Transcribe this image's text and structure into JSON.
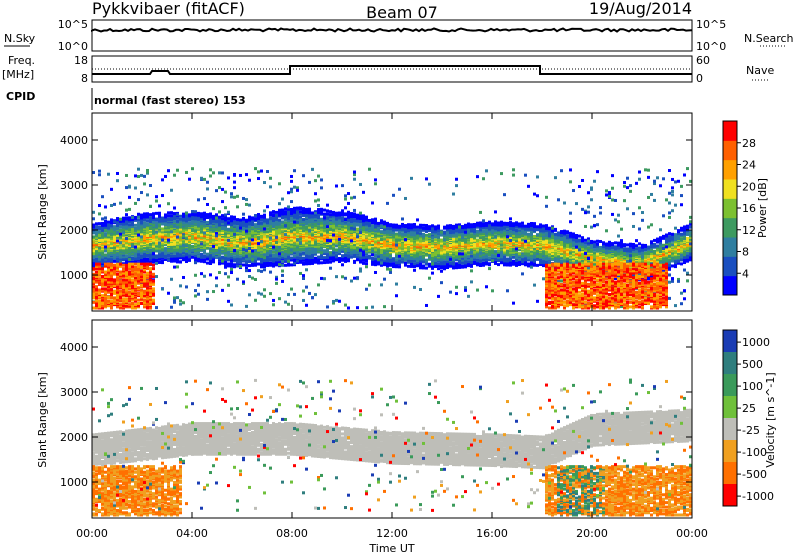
{
  "header": {
    "radar": "Pykkvibaer (fitACF)",
    "beam": "Beam 07",
    "date": "19/Aug/2014"
  },
  "sky_panel": {
    "left_label": "N.Sky",
    "left_ticks": [
      "10^5",
      "10^0"
    ],
    "right_ticks": [
      "10^5",
      "10^0"
    ],
    "right_label": "N.Search"
  },
  "freq_panel": {
    "left_label_1": "Freq.",
    "left_label_2": "[MHz]",
    "left_ticks": [
      "18",
      "8"
    ],
    "right_ticks": [
      "60",
      "0"
    ],
    "right_label": "Nave"
  },
  "cpid": {
    "label": "CPID",
    "text": "normal (fast stereo) 153"
  },
  "colors": {
    "scale_blue": "#0000ff",
    "scale_red": "#ff0000",
    "ground_scatter": "#bebeb8"
  },
  "chart_data": [
    {
      "type": "heatmap",
      "name": "power",
      "ylabel": "Slant Range [km]",
      "yticks": [
        1000,
        2000,
        3000,
        4000
      ],
      "ylim": [
        200,
        4600
      ],
      "xlim": [
        "00:00",
        "24:00"
      ],
      "colorbar_label": "Power [dB]",
      "colorbar_ticks": [
        "4",
        "8",
        "12",
        "16",
        "20",
        "24",
        "28"
      ],
      "colorbar_range": [
        0,
        32
      ],
      "colorbar_colors": [
        "#0000ff",
        "#1a4fc0",
        "#2f7ea0",
        "#3d9a60",
        "#7cc030",
        "#f0e020",
        "#ffa000",
        "#ff6000",
        "#ff0000"
      ],
      "bands_center_km": [
        {
          "t": 0.0,
          "km": 1700,
          "width": 300
        },
        {
          "t": 2.0,
          "km": 1850,
          "width": 350
        },
        {
          "t": 4.0,
          "km": 1900,
          "width": 350
        },
        {
          "t": 6.0,
          "km": 1750,
          "width": 350
        },
        {
          "t": 8.0,
          "km": 1900,
          "width": 400
        },
        {
          "t": 10.0,
          "km": 1900,
          "width": 350
        },
        {
          "t": 12.0,
          "km": 1700,
          "width": 300
        },
        {
          "t": 14.0,
          "km": 1650,
          "width": 300
        },
        {
          "t": 16.0,
          "km": 1750,
          "width": 300
        },
        {
          "t": 18.0,
          "km": 1700,
          "width": 300
        },
        {
          "t": 20.0,
          "km": 1400,
          "width": 250
        },
        {
          "t": 22.0,
          "km": 1300,
          "width": 250
        },
        {
          "t": 24.0,
          "km": 1800,
          "width": 250
        }
      ]
    },
    {
      "type": "heatmap",
      "name": "velocity",
      "ylabel": "Slant Range [km]",
      "yticks": [
        1000,
        2000,
        3000,
        4000
      ],
      "ylim": [
        200,
        4600
      ],
      "xlabel": "Time UT",
      "xticks": [
        "00:00",
        "04:00",
        "08:00",
        "12:00",
        "16:00",
        "20:00",
        "00:00"
      ],
      "colorbar_label": "Velocity [m s^-1]",
      "colorbar_ticks": [
        "1000",
        "500",
        "100",
        "25",
        "-25",
        "-100",
        "-500",
        "-1000"
      ],
      "colorbar_colors": [
        "#1a3cb4",
        "#2f7e7e",
        "#3a9a5a",
        "#6fc03a",
        "#bebeb8",
        "#f0a020",
        "#ff7000",
        "#ff0000"
      ],
      "ground_scatter_km": [
        {
          "t": 0.0,
          "km": 1750
        },
        {
          "t": 4.0,
          "km": 2000
        },
        {
          "t": 8.0,
          "km": 2000
        },
        {
          "t": 12.0,
          "km": 1800
        },
        {
          "t": 16.0,
          "km": 1750
        },
        {
          "t": 18.0,
          "km": 1700
        },
        {
          "t": 20.0,
          "km": 2200
        },
        {
          "t": 24.0,
          "km": 2300
        }
      ]
    }
  ]
}
